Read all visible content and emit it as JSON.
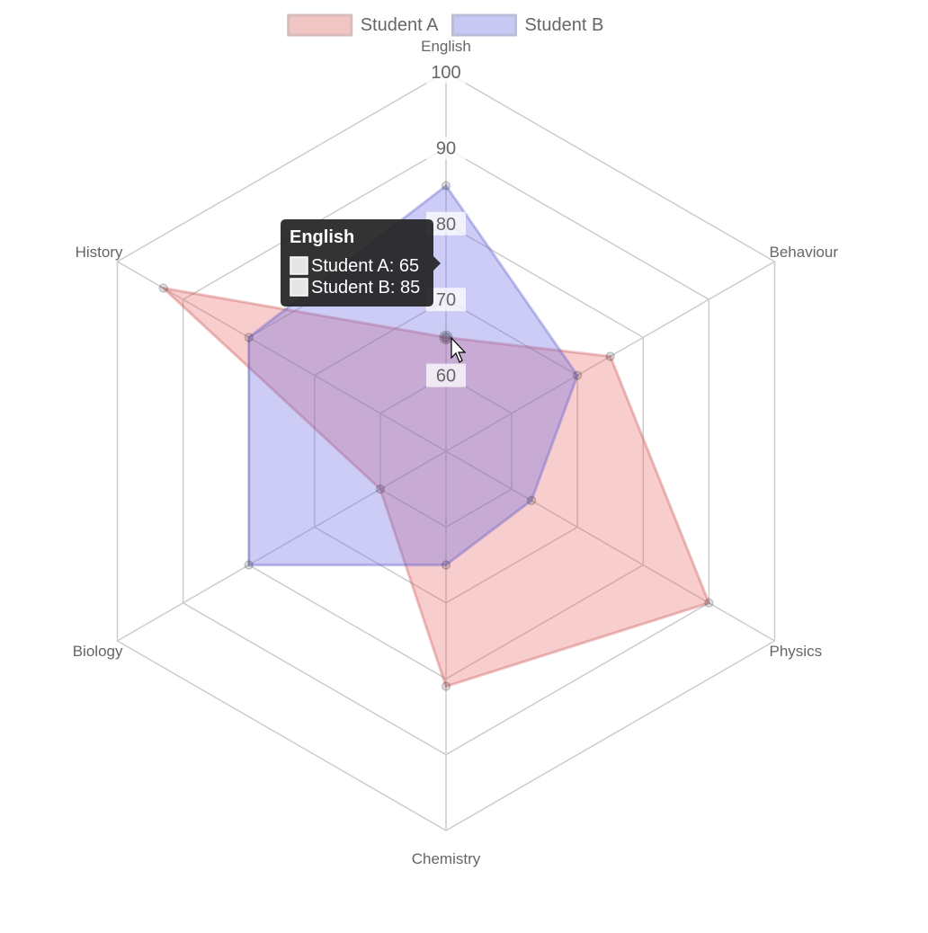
{
  "chart_data": {
    "type": "radar",
    "title": "",
    "categories": [
      "English",
      "Behaviour",
      "Physics",
      "Chemistry",
      "Biology",
      "History"
    ],
    "series": [
      {
        "name": "Student A",
        "values": [
          65,
          75,
          90,
          81,
          60,
          93
        ],
        "fill": "rgba(230,90,90,0.30)",
        "stroke": "rgba(200,80,80,0.35)",
        "swatch_fill": "#f2c5c5",
        "swatch_stroke": "#d8bcbc"
      },
      {
        "name": "Student B",
        "values": [
          85,
          70,
          63,
          65,
          80,
          80
        ],
        "fill": "rgba(110,110,230,0.35)",
        "stroke": "rgba(90,90,200,0.35)",
        "swatch_fill": "#c8c8f4",
        "swatch_stroke": "#bcbcd8"
      }
    ],
    "ticks": [
      60,
      70,
      80,
      90,
      100
    ],
    "rlim": [
      50,
      100
    ],
    "grid": true,
    "legend_position": "top",
    "grid_color": "#cccccc",
    "label_color": "#666666"
  },
  "tooltip": {
    "title": "English",
    "lines": [
      "Student A: 65",
      "Student B: 85"
    ],
    "background": "#222222"
  }
}
